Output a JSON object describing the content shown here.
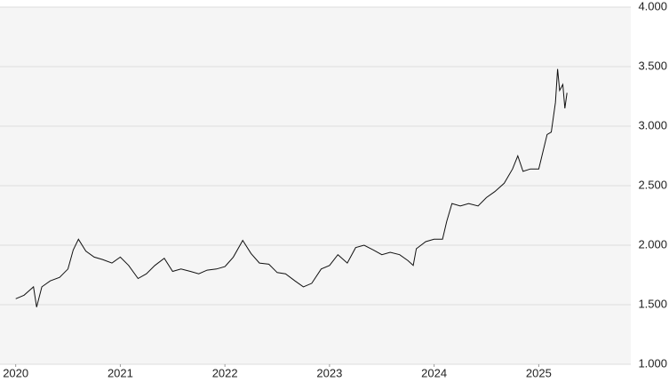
{
  "chart_data": {
    "type": "line",
    "x": [
      2020.0,
      2020.08,
      2020.17,
      2020.2,
      2020.25,
      2020.33,
      2020.42,
      2020.5,
      2020.55,
      2020.6,
      2020.67,
      2020.75,
      2020.83,
      2020.92,
      2021.0,
      2021.08,
      2021.17,
      2021.25,
      2021.33,
      2021.42,
      2021.5,
      2021.58,
      2021.67,
      2021.75,
      2021.83,
      2021.92,
      2022.0,
      2022.08,
      2022.17,
      2022.25,
      2022.33,
      2022.42,
      2022.5,
      2022.58,
      2022.67,
      2022.75,
      2022.83,
      2022.92,
      2023.0,
      2023.08,
      2023.17,
      2023.25,
      2023.33,
      2023.42,
      2023.5,
      2023.58,
      2023.67,
      2023.75,
      2023.8,
      2023.83,
      2023.92,
      2024.0,
      2024.08,
      2024.12,
      2024.17,
      2024.25,
      2024.33,
      2024.42,
      2024.5,
      2024.58,
      2024.67,
      2024.75,
      2024.8,
      2024.85,
      2024.92,
      2025.0,
      2025.08,
      2025.12,
      2025.16,
      2025.18,
      2025.2,
      2025.23,
      2025.25,
      2025.27
    ],
    "series": [
      {
        "color": "#111111",
        "values": [
          1550,
          1580,
          1650,
          1480,
          1650,
          1700,
          1730,
          1800,
          1960,
          2050,
          1950,
          1900,
          1880,
          1850,
          1900,
          1830,
          1720,
          1760,
          1830,
          1890,
          1780,
          1800,
          1780,
          1760,
          1790,
          1800,
          1820,
          1900,
          2040,
          1930,
          1850,
          1840,
          1770,
          1760,
          1700,
          1650,
          1680,
          1800,
          1830,
          1920,
          1850,
          1980,
          2000,
          1960,
          1920,
          1940,
          1920,
          1870,
          1830,
          1970,
          2030,
          2050,
          2050,
          2200,
          2350,
          2330,
          2350,
          2330,
          2400,
          2450,
          2520,
          2640,
          2750,
          2620,
          2640,
          2640,
          2930,
          2950,
          3200,
          3480,
          3300,
          3350,
          3150,
          3280
        ]
      }
    ],
    "xlim": [
      2019.85,
      2025.88
    ],
    "xticks": [
      2020,
      2021,
      2022,
      2023,
      2024,
      2025
    ],
    "ylim": [
      1000,
      4000
    ],
    "yticks": [
      {
        "value": 1000,
        "label": "1.000"
      },
      {
        "value": 1500,
        "label": "1.500"
      },
      {
        "value": 2000,
        "label": "2.000"
      },
      {
        "value": 2500,
        "label": "2.500"
      },
      {
        "value": 3000,
        "label": "3.000"
      },
      {
        "value": 3500,
        "label": "3.500"
      },
      {
        "value": 4000,
        "label": "4.000"
      }
    ],
    "grid": true,
    "y_axis_side": "right",
    "background": "#f5f5f5"
  }
}
